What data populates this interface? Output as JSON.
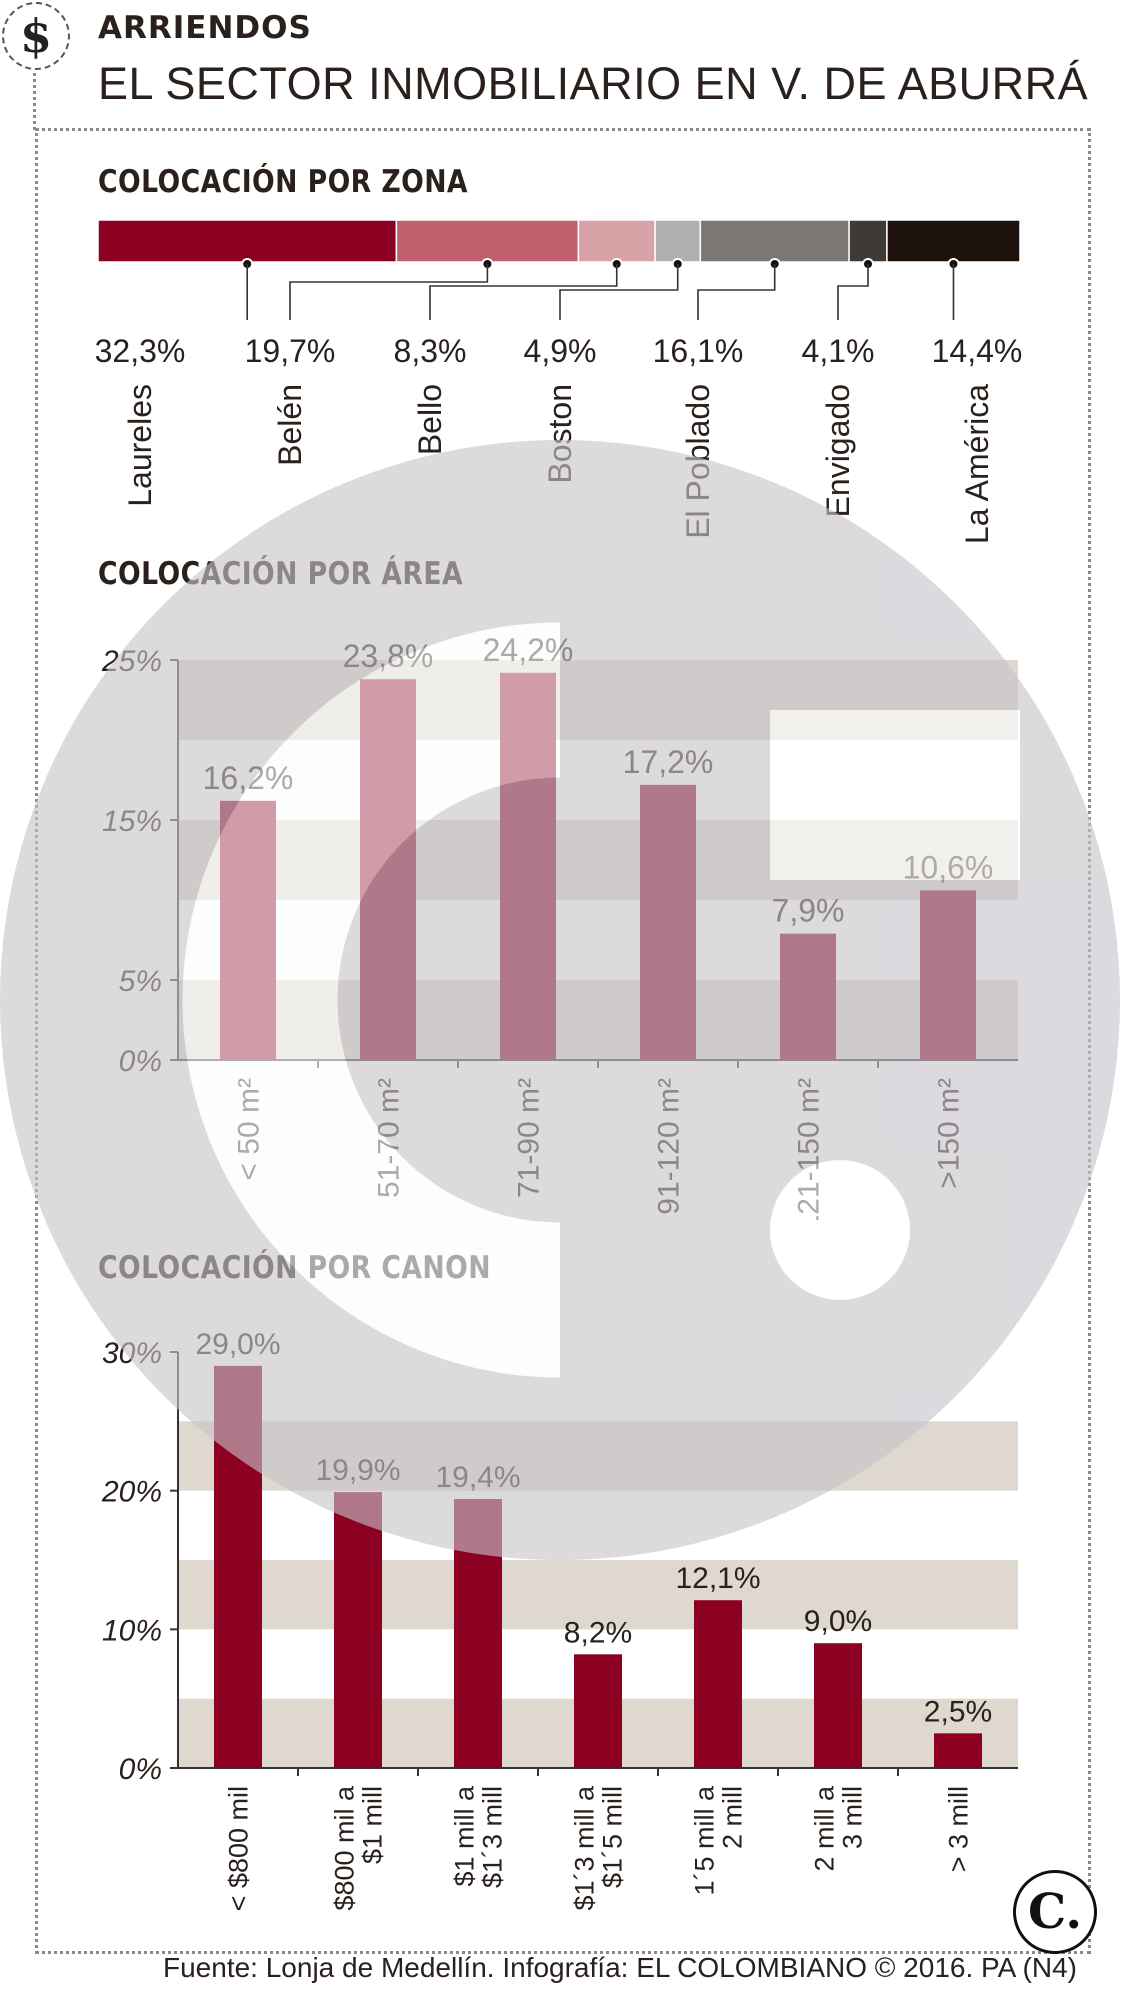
{
  "header": {
    "icon": "dollar-icon",
    "icon_glyph": "$",
    "kicker": "ARRIENDOS",
    "title": "EL SECTOR INMOBILIARIO EN V. DE ABURRÁ"
  },
  "sections": {
    "zona_title": "COLOCACIÓN POR ZONA",
    "area_title": "COLOCACIÓN POR ÁREA",
    "canon_title": "COLOCACIÓN POR CANON"
  },
  "source": "Fuente: Lonja de Medellín. Infografía: EL COLOMBIANO © 2016. PA (N4)",
  "logo": {
    "icon": "el-colombiano-logo-icon",
    "glyph": "C."
  },
  "colors": {
    "bar": "#8c0021",
    "band": "#ded8cf",
    "zona_segments": [
      "#8c0021",
      "#c0606c",
      "#d9a2a6",
      "#b0b0b0",
      "#7a7775",
      "#403a37",
      "#1e120c"
    ]
  },
  "chart_data": [
    {
      "type": "bar",
      "stacked_horizontal": true,
      "title": "COLOCACIÓN POR ZONA",
      "categories": [
        "Laureles",
        "Belén",
        "Bello",
        "Boston",
        "El Poblado",
        "Envigado",
        "La América"
      ],
      "values": [
        32.3,
        19.7,
        8.3,
        4.9,
        16.1,
        4.1,
        14.4
      ],
      "value_labels": [
        "32,3%",
        "19,7%",
        "8,3%",
        "4,9%",
        "16,1%",
        "4,1%",
        "14,4%"
      ]
    },
    {
      "type": "bar",
      "title": "COLOCACIÓN POR ÁREA",
      "categories": [
        "< 50 m²",
        "51-70 m²",
        "71-90 m²",
        "91-120 m²",
        "121-150 m²",
        ">150 m²"
      ],
      "values": [
        16.2,
        23.8,
        24.2,
        17.2,
        7.9,
        10.6
      ],
      "value_labels": [
        "16,2%",
        "23,8%",
        "24,2%",
        "17,2%",
        "7,9%",
        "10,6%"
      ],
      "ylim": [
        0,
        25
      ],
      "yticks": [
        0,
        5,
        15,
        25
      ],
      "ytick_labels": [
        "0%",
        "5%",
        "15%",
        "25%"
      ],
      "bands": [
        [
          0,
          5
        ],
        [
          10,
          15
        ],
        [
          20,
          25
        ]
      ]
    },
    {
      "type": "bar",
      "title": "COLOCACIÓN POR CANON",
      "categories": [
        [
          "< $800 mil"
        ],
        [
          "$800 mil a",
          "$1 mill"
        ],
        [
          "$1 mill a",
          "$1´3 mill"
        ],
        [
          "$1´3 mill a",
          "$1´5 mill"
        ],
        [
          "1´5 mill a",
          "2 mill"
        ],
        [
          "2 mill a",
          "3 mill"
        ],
        [
          "> 3 mill"
        ]
      ],
      "values": [
        29.0,
        19.9,
        19.4,
        8.2,
        12.1,
        9.0,
        2.5
      ],
      "value_labels": [
        "29,0%",
        "19,9%",
        "19,4%",
        "8,2%",
        "12,1%",
        "9,0%",
        "2,5%"
      ],
      "ylim": [
        0,
        30
      ],
      "yticks": [
        0,
        10,
        20,
        30
      ],
      "ytick_labels": [
        "0%",
        "10%",
        "20%",
        "30%"
      ],
      "bands": [
        [
          0,
          5
        ],
        [
          10,
          15
        ],
        [
          20,
          25
        ]
      ]
    }
  ]
}
